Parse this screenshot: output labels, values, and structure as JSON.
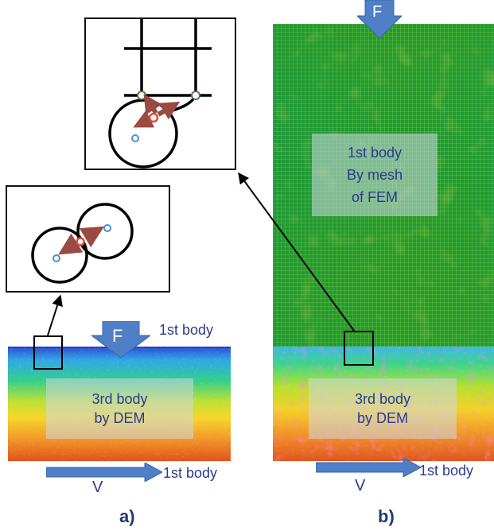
{
  "panel_a": {
    "label": "a)",
    "force_label": "F",
    "velocity_label": "V",
    "top_body_label": "1st body",
    "bottom_body_label": "1st body",
    "third_body": {
      "line1": "3rd body",
      "line2": "by DEM"
    }
  },
  "panel_b": {
    "label": "b)",
    "force_label": "F",
    "velocity_label": "V",
    "bottom_body_label": "1st body",
    "first_body": {
      "line1": "1st body",
      "line2": "By mesh",
      "line3": "of FEM"
    },
    "third_body": {
      "line1": "3rd body",
      "line2": "by DEM"
    }
  },
  "colors": {
    "arrow_fill": "#4f7fc6",
    "mesh_green": "#1a9e3c",
    "text_color": "#2b3a8c",
    "label_color": "#1f3b73"
  }
}
